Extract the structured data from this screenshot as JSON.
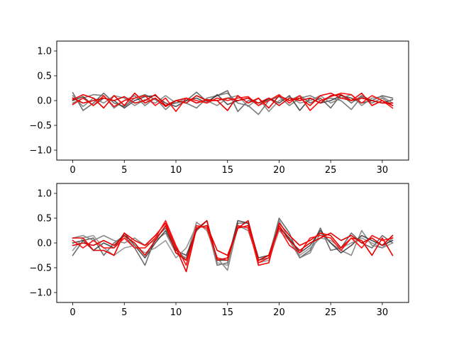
{
  "chart_data": [
    {
      "type": "line",
      "title": "",
      "xlabel": "",
      "ylabel": "",
      "xlim": [
        -1.55,
        32.55
      ],
      "ylim": [
        -1.2,
        1.2
      ],
      "xticks": [
        0,
        5,
        10,
        15,
        20,
        25,
        30
      ],
      "xtick_labels": [
        "0",
        "5",
        "10",
        "15",
        "20",
        "25",
        "30"
      ],
      "yticks": [
        -1.0,
        -0.5,
        0.0,
        0.5,
        1.0
      ],
      "ytick_labels": [
        "−1.0",
        "−0.5",
        "0.0",
        "0.5",
        "1.0"
      ],
      "grid": false,
      "x": [
        0,
        1,
        2,
        3,
        4,
        5,
        6,
        7,
        8,
        9,
        10,
        11,
        12,
        13,
        14,
        15,
        16,
        17,
        18,
        19,
        20,
        21,
        22,
        23,
        24,
        25,
        26,
        27,
        28,
        29,
        30,
        31
      ],
      "series": [
        {
          "color": "#555555",
          "values": [
            0.16,
            -0.2,
            -0.05,
            0.15,
            -0.05,
            -0.12,
            0.05,
            0.12,
            0.02,
            -0.1,
            -0.05,
            0.0,
            0.17,
            -0.02,
            0.1,
            0.2,
            -0.22,
            0.0,
            -0.05,
            0.02,
            0.08,
            0.0,
            0.1,
            -0.05,
            0.05,
            -0.15,
            0.12,
            -0.05,
            0.1,
            0.0,
            0.1,
            0.05
          ]
        },
        {
          "color": "#666666",
          "values": [
            -0.05,
            0.05,
            0.12,
            0.1,
            -0.15,
            0.0,
            0.1,
            -0.1,
            0.05,
            -0.18,
            0.0,
            -0.05,
            -0.15,
            0.05,
            0.1,
            0.15,
            -0.05,
            -0.1,
            -0.28,
            0.0,
            0.08,
            -0.1,
            0.05,
            0.1,
            0.0,
            0.05,
            0.0,
            -0.18,
            0.08,
            -0.05,
            0.05,
            -0.1
          ]
        },
        {
          "color": "#333333",
          "values": [
            0.0,
            0.08,
            -0.1,
            0.05,
            0.0,
            -0.15,
            0.0,
            0.08,
            0.1,
            -0.05,
            -0.12,
            0.0,
            0.05,
            -0.05,
            0.12,
            -0.08,
            0.0,
            0.05,
            -0.1,
            0.05,
            -0.05,
            0.1,
            -0.2,
            0.05,
            -0.05,
            0.0,
            0.1,
            0.05,
            -0.05,
            0.0,
            -0.05,
            0.02
          ]
        },
        {
          "color": "#777777",
          "values": [
            0.1,
            -0.12,
            0.05,
            -0.05,
            0.1,
            0.05,
            -0.1,
            0.02,
            -0.05,
            0.1,
            -0.05,
            0.05,
            -0.05,
            0.0,
            -0.1,
            0.05,
            0.1,
            -0.12,
            0.05,
            -0.22,
            0.0,
            0.08,
            -0.05,
            0.0,
            0.1,
            -0.05,
            0.05,
            0.12,
            -0.1,
            0.05,
            0.08,
            -0.05
          ]
        },
        {
          "color": "#ee0000",
          "values": [
            0.02,
            0.12,
            0.05,
            -0.15,
            0.1,
            -0.1,
            0.15,
            -0.05,
            0.05,
            -0.12,
            0.0,
            0.05,
            -0.05,
            0.02,
            0.0,
            -0.2,
            0.1,
            -0.05,
            0.05,
            -0.15,
            0.1,
            0.0,
            0.05,
            -0.1,
            0.1,
            0.15,
            0.05,
            0.0,
            0.15,
            -0.1,
            0.0,
            -0.1
          ]
        },
        {
          "color": "#ff1111",
          "values": [
            -0.08,
            0.05,
            -0.1,
            0.1,
            -0.12,
            0.0,
            0.05,
            0.1,
            -0.1,
            0.05,
            -0.22,
            0.05,
            0.0,
            -0.05,
            0.05,
            0.0,
            0.05,
            0.08,
            -0.1,
            0.0,
            0.12,
            -0.05,
            0.1,
            -0.2,
            0.0,
            0.08,
            0.15,
            0.12,
            -0.05,
            0.1,
            0.0,
            -0.15
          ]
        },
        {
          "color": "#dd0000",
          "values": [
            0.05,
            -0.05,
            0.0,
            0.05,
            0.0,
            0.08,
            -0.05,
            0.0,
            0.12,
            -0.1,
            0.0,
            -0.05,
            0.1,
            0.0,
            0.0,
            0.05,
            0.0,
            0.05,
            -0.05,
            0.05,
            -0.1,
            0.05,
            0.0,
            0.05,
            -0.05,
            0.1,
            0.12,
            0.0,
            0.05,
            0.0,
            -0.05,
            -0.05
          ]
        }
      ]
    },
    {
      "type": "line",
      "title": "",
      "xlabel": "",
      "ylabel": "",
      "xlim": [
        -1.55,
        32.55
      ],
      "ylim": [
        -1.2,
        1.2
      ],
      "xticks": [
        0,
        5,
        10,
        15,
        20,
        25,
        30
      ],
      "xtick_labels": [
        "0",
        "5",
        "10",
        "15",
        "20",
        "25",
        "30"
      ],
      "yticks": [
        -1.0,
        -0.5,
        0.0,
        0.5,
        1.0
      ],
      "ytick_labels": [
        "−1.0",
        "−0.5",
        "0.0",
        "0.5",
        "1.0"
      ],
      "grid": false,
      "x": [
        0,
        1,
        2,
        3,
        4,
        5,
        6,
        7,
        8,
        9,
        10,
        11,
        12,
        13,
        14,
        15,
        16,
        17,
        18,
        19,
        20,
        21,
        22,
        23,
        24,
        25,
        26,
        27,
        28,
        29,
        30,
        31
      ],
      "series": [
        {
          "color": "#555555",
          "values": [
            -0.25,
            0.05,
            0.1,
            -0.25,
            0.0,
            0.15,
            -0.1,
            -0.45,
            0.1,
            0.3,
            -0.1,
            -0.35,
            0.3,
            0.35,
            -0.45,
            -0.4,
            0.4,
            0.4,
            -0.35,
            -0.3,
            0.5,
            0.2,
            -0.3,
            -0.15,
            0.3,
            -0.15,
            -0.1,
            0.2,
            0.0,
            -0.1,
            0.15,
            0.0
          ]
        },
        {
          "color": "#777777",
          "values": [
            0.1,
            0.15,
            0.05,
            0.15,
            0.05,
            0.0,
            0.1,
            -0.05,
            0.05,
            0.2,
            -0.2,
            -0.3,
            0.42,
            0.25,
            -0.3,
            -0.55,
            0.35,
            0.25,
            -0.35,
            -0.25,
            0.45,
            0.05,
            -0.3,
            -0.2,
            0.2,
            0.0,
            -0.15,
            -0.25,
            0.25,
            -0.05,
            -0.1,
            0.1
          ]
        },
        {
          "color": "#333333",
          "values": [
            0.0,
            0.05,
            -0.15,
            0.0,
            -0.1,
            0.2,
            -0.05,
            -0.3,
            0.0,
            0.25,
            -0.15,
            -0.25,
            0.25,
            0.45,
            -0.35,
            -0.35,
            0.45,
            0.4,
            -0.3,
            -0.25,
            0.3,
            0.1,
            -0.2,
            -0.05,
            0.25,
            0.0,
            -0.2,
            -0.05,
            0.15,
            0.05,
            -0.05,
            0.05
          ]
        },
        {
          "color": "#888888",
          "values": [
            -0.15,
            0.1,
            0.15,
            -0.1,
            -0.25,
            -0.1,
            -0.05,
            -0.2,
            -0.1,
            0.05,
            -0.3,
            -0.1,
            0.35,
            0.3,
            -0.4,
            -0.45,
            0.3,
            0.35,
            -0.4,
            -0.35,
            0.25,
            0.05,
            -0.25,
            -0.1,
            0.1,
            0.05,
            -0.1,
            0.0,
            0.1,
            0.0,
            -0.1,
            0.0
          ]
        },
        {
          "color": "#ee0000",
          "values": [
            0.1,
            0.1,
            -0.15,
            -0.15,
            -0.25,
            0.2,
            0.05,
            -0.05,
            0.15,
            0.4,
            -0.1,
            -0.58,
            0.3,
            0.35,
            -0.15,
            -0.25,
            0.3,
            0.35,
            -0.45,
            -0.4,
            0.4,
            0.15,
            -0.05,
            0.05,
            0.2,
            0.15,
            -0.1,
            0.1,
            0.05,
            -0.25,
            0.1,
            -0.25
          ]
        },
        {
          "color": "#ff1111",
          "values": [
            0.05,
            -0.1,
            0.05,
            -0.1,
            -0.1,
            0.1,
            -0.1,
            -0.1,
            0.1,
            0.45,
            -0.05,
            -0.45,
            0.35,
            0.3,
            -0.3,
            -0.35,
            0.35,
            0.3,
            -0.4,
            -0.3,
            0.3,
            -0.05,
            -0.2,
            0.1,
            0.15,
            0.1,
            -0.15,
            0.1,
            -0.1,
            0.15,
            0.05,
            0.1
          ]
        },
        {
          "color": "#dd0000",
          "values": [
            -0.05,
            0.0,
            -0.05,
            0.05,
            -0.05,
            0.15,
            0.0,
            -0.25,
            0.05,
            0.35,
            -0.2,
            -0.35,
            0.28,
            0.45,
            -0.35,
            -0.3,
            0.3,
            0.45,
            -0.35,
            -0.25,
            0.35,
            0.05,
            -0.15,
            0.0,
            0.1,
            0.2,
            0.05,
            0.15,
            0.0,
            0.1,
            -0.05,
            0.15
          ]
        }
      ]
    }
  ]
}
